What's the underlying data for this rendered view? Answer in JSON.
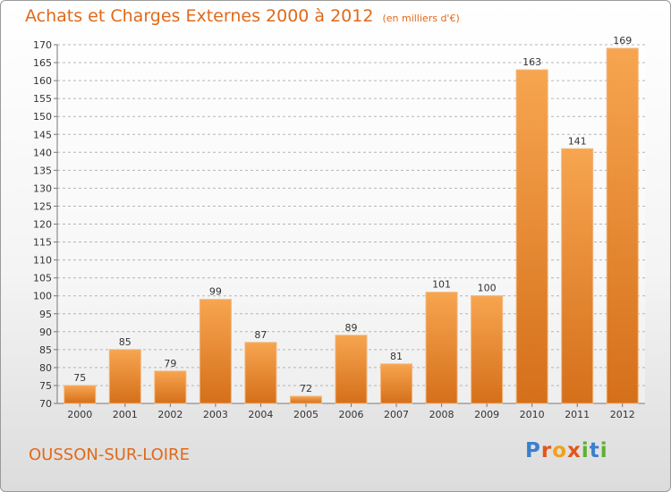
{
  "page": {
    "title": "Achats et Charges Externes 2000 à 2012",
    "unit": "(en milliers d'€)",
    "commune": "OUSSON-SUR-LOIRE",
    "logo": "Proxiti"
  },
  "colors": {
    "title": "#e0691a",
    "bar_light": "#f7a550",
    "bar_dark": "#d56f1a",
    "logo_letters": [
      "#3a7fd0",
      "#e3551c",
      "#f0a11c",
      "#e3551c",
      "#5fb030",
      "#3a7fd0",
      "#5fb030"
    ]
  },
  "chart_data": {
    "type": "bar",
    "title": "Achats et Charges Externes 2000 à 2012",
    "subtitle": "(en milliers d'€)",
    "categories": [
      "2000",
      "2001",
      "2002",
      "2003",
      "2004",
      "2005",
      "2006",
      "2007",
      "2008",
      "2009",
      "2010",
      "2011",
      "2012"
    ],
    "values": [
      75,
      85,
      79,
      99,
      87,
      72,
      89,
      81,
      101,
      100,
      163,
      141,
      169
    ],
    "ylim": [
      70,
      170
    ],
    "ytick_step": 5,
    "grid": true,
    "legend": "none"
  }
}
